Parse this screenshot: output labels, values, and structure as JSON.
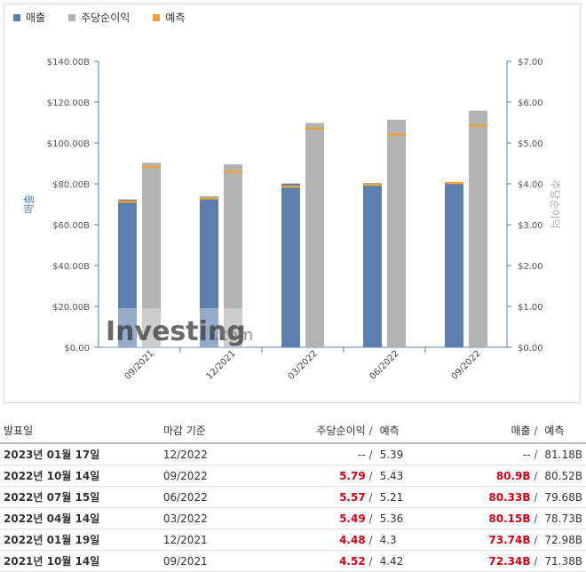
{
  "legend": [
    {
      "label": "매출",
      "color": "#5b7fae"
    },
    {
      "label": "주당순이익",
      "color": "#b3b3b3"
    },
    {
      "label": "예측",
      "color": "#e8a33a"
    }
  ],
  "watermark": {
    "brand": "Investing",
    "suffix": ".com"
  },
  "chart_data": {
    "type": "bar",
    "categories": [
      "09/2021",
      "12/2021",
      "03/2022",
      "06/2022",
      "09/2022"
    ],
    "series": [
      {
        "name": "매출",
        "axis": "left",
        "values": [
          72.34,
          73.74,
          80.15,
          80.33,
          80.9
        ],
        "forecast": [
          71.38,
          72.98,
          78.73,
          79.68,
          80.52
        ]
      },
      {
        "name": "주당순이익",
        "axis": "right",
        "values": [
          4.52,
          4.48,
          5.49,
          5.57,
          5.79
        ],
        "forecast": [
          4.42,
          4.3,
          5.36,
          5.21,
          5.43
        ]
      }
    ],
    "ylabel_left": "매출",
    "ylabel_right": "주당순이익",
    "ylim_left": [
      0,
      140
    ],
    "ylim_right": [
      0,
      7
    ],
    "left_ticks": [
      "$0.00",
      "$20.00B",
      "$40.00B",
      "$60.00B",
      "$80.00B",
      "$100.00B",
      "$120.00B",
      "$140.00B"
    ],
    "right_ticks": [
      "$0.00",
      "$1.00",
      "$2.00",
      "$3.00",
      "$4.00",
      "$5.00",
      "$6.00",
      "$7.00"
    ],
    "forecast_color": "#e8a33a",
    "grid": false,
    "legend_position": "top-left"
  },
  "table": {
    "headers": {
      "date": "발표일",
      "period": "마감 기준",
      "eps": "주당순이익",
      "eps_sep": "/",
      "eps_forecast": "예측",
      "rev": "매출",
      "rev_sep": "/",
      "rev_forecast": "예측"
    },
    "rows": [
      {
        "date": "2023년 01월 17일",
        "period": "12/2022",
        "eps": "--",
        "eps_forecast": "5.39",
        "rev": "--",
        "rev_forecast": "81.18B",
        "beat": false
      },
      {
        "date": "2022년 10월 14일",
        "period": "09/2022",
        "eps": "5.79",
        "eps_forecast": "5.43",
        "rev": "80.9B",
        "rev_forecast": "80.52B",
        "beat": true
      },
      {
        "date": "2022년 07월 15일",
        "period": "06/2022",
        "eps": "5.57",
        "eps_forecast": "5.21",
        "rev": "80.33B",
        "rev_forecast": "79.68B",
        "beat": true
      },
      {
        "date": "2022년 04월 14일",
        "period": "03/2022",
        "eps": "5.49",
        "eps_forecast": "5.36",
        "rev": "80.15B",
        "rev_forecast": "78.73B",
        "beat": true
      },
      {
        "date": "2022년 01월 19일",
        "period": "12/2021",
        "eps": "4.48",
        "eps_forecast": "4.3",
        "rev": "73.74B",
        "rev_forecast": "72.98B",
        "beat": true
      },
      {
        "date": "2021년 10월 14일",
        "period": "09/2021",
        "eps": "4.52",
        "eps_forecast": "4.42",
        "rev": "72.34B",
        "rev_forecast": "71.38B",
        "beat": true
      }
    ]
  }
}
